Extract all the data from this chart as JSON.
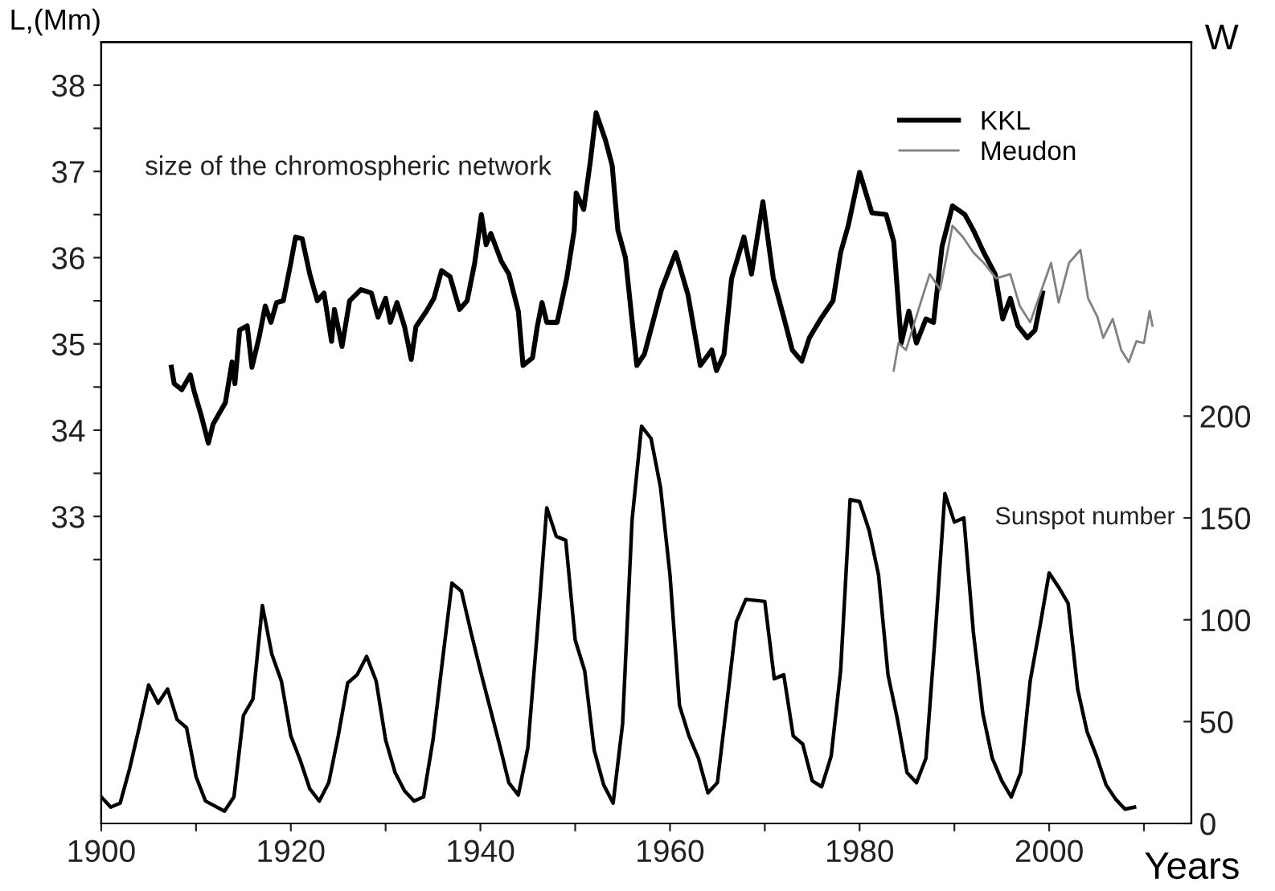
{
  "chart_data": {
    "type": "line",
    "ylabel": "L,(Mm)",
    "y2label": "W",
    "xlabel": "Years",
    "annotations": [
      "size of the chromospheric network"
    ],
    "xlim": [
      1900,
      2015
    ],
    "xticks": [
      1900,
      {
        "value": 1910,
        "label": null
      },
      1920,
      {
        "value": 1930,
        "label": null
      },
      1940,
      {
        "value": 1950,
        "label": null
      },
      1960,
      {
        "value": 1970,
        "label": null
      },
      1980,
      {
        "value": 1990,
        "label": null
      },
      2000,
      {
        "value": 2010,
        "label": null
      }
    ],
    "ylim": [
      29.44,
      38.5
    ],
    "yticks": [
      {
        "value": 32.5,
        "label": null
      },
      33,
      {
        "value": 33.5,
        "label": null
      },
      34,
      {
        "value": 34.5,
        "label": null
      },
      35,
      {
        "value": 35.5,
        "label": null
      },
      36,
      {
        "value": 36.5,
        "label": null
      },
      37,
      {
        "value": 37.5,
        "label": null
      },
      38
    ],
    "y2lim": [
      0,
      383.6
    ],
    "y2ticks": [
      0,
      50,
      100,
      150,
      200
    ],
    "legend": "top right",
    "grid": false,
    "series": [
      {
        "name": "KKL",
        "color": "#000000",
        "x": [
          1907.4,
          1907.7,
          1908.5,
          1909.4,
          1909.8,
          1910.5,
          1911.3,
          1911.8,
          1913.1,
          1913.8,
          1914.1,
          1914.6,
          1915.4,
          1915.9,
          1916.7,
          1917.3,
          1917.9,
          1918.5,
          1919.2,
          1920.0,
          1920.5,
          1921.2,
          1922.0,
          1922.8,
          1923.5,
          1924.3,
          1924.6,
          1925.4,
          1926.2,
          1927.4,
          1928.5,
          1929.2,
          1930.0,
          1930.5,
          1931.2,
          1932.0,
          1932.7,
          1933.2,
          1934.3,
          1935.1,
          1935.9,
          1936.8,
          1937.8,
          1938.6,
          1939.4,
          1940.1,
          1940.6,
          1941.1,
          1942.2,
          1943.0,
          1944.0,
          1944.5,
          1945.5,
          1946.0,
          1946.5,
          1947.0,
          1948.1,
          1949.1,
          1949.9,
          1950.1,
          1950.9,
          1951.6,
          1952.2,
          1953.2,
          1953.9,
          1954.5,
          1955.3,
          1956.5,
          1957.3,
          1959.1,
          1960.6,
          1961.9,
          1963.2,
          1964.4,
          1964.9,
          1965.7,
          1966.5,
          1967.8,
          1968.6,
          1969.8,
          1970.9,
          1972.0,
          1972.9,
          1973.9,
          1974.7,
          1975.9,
          1977.2,
          1978.0,
          1978.8,
          1980.0,
          1981.3,
          1982.8,
          1983.6,
          1984.4,
          1985.2,
          1986.0,
          1987.0,
          1987.8,
          1988.7,
          1989.8,
          1991.1,
          1992.0,
          1993.1,
          1994.3,
          1995.1,
          1995.9,
          1996.7,
          1997.7,
          1998.5,
          1999.3
        ],
        "values": [
          34.73,
          34.54,
          34.47,
          34.64,
          34.45,
          34.19,
          33.85,
          34.07,
          34.32,
          34.79,
          34.54,
          35.16,
          35.21,
          34.73,
          35.1,
          35.44,
          35.25,
          35.48,
          35.5,
          35.94,
          36.24,
          36.22,
          35.81,
          35.5,
          35.59,
          35.03,
          35.4,
          34.97,
          35.5,
          35.63,
          35.59,
          35.31,
          35.53,
          35.25,
          35.48,
          35.2,
          34.82,
          35.2,
          35.38,
          35.53,
          35.85,
          35.78,
          35.4,
          35.5,
          35.94,
          36.5,
          36.15,
          36.28,
          35.96,
          35.81,
          35.38,
          34.75,
          34.84,
          35.2,
          35.48,
          35.25,
          35.25,
          35.76,
          36.32,
          36.75,
          36.56,
          37.12,
          37.68,
          37.36,
          37.07,
          36.32,
          36.0,
          34.75,
          34.88,
          35.63,
          36.06,
          35.57,
          34.75,
          34.93,
          34.69,
          34.88,
          35.76,
          36.24,
          35.81,
          36.65,
          35.76,
          35.31,
          34.93,
          34.8,
          35.07,
          35.29,
          35.5,
          36.06,
          36.37,
          36.99,
          36.52,
          36.5,
          36.19,
          35.01,
          35.38,
          35.01,
          35.29,
          35.25,
          36.13,
          36.6,
          36.5,
          36.32,
          36.06,
          35.81,
          35.29,
          35.53,
          35.21,
          35.07,
          35.16,
          35.59
        ]
      },
      {
        "name": "Meudon",
        "color": "#808080",
        "x": [
          1983.6,
          1984.1,
          1984.9,
          1986.5,
          1987.4,
          1988.5,
          1989.8,
          1990.9,
          1992.0,
          1993.1,
          1994.4,
          1995.9,
          1996.9,
          1998.0,
          1998.8,
          2000.2,
          2001.0,
          2002.1,
          2003.3,
          2004.1,
          2005.1,
          2005.7,
          2006.7,
          2007.6,
          2008.4,
          2009.2,
          2010.0,
          2010.6,
          2010.9
        ],
        "values": [
          34.69,
          35.01,
          34.93,
          35.5,
          35.81,
          35.63,
          36.37,
          36.24,
          36.06,
          35.94,
          35.76,
          35.81,
          35.44,
          35.25,
          35.5,
          35.94,
          35.48,
          35.94,
          36.09,
          35.53,
          35.31,
          35.07,
          35.29,
          34.93,
          34.79,
          35.03,
          35.01,
          35.38,
          35.21
        ]
      },
      {
        "name": "Sunspot number",
        "color": "#000000",
        "axis": "y2",
        "x": [
          1900,
          1901,
          1902,
          1903,
          1904,
          1905,
          1906,
          1907,
          1908,
          1909,
          1910,
          1911,
          1913,
          1914,
          1915,
          1916,
          1917,
          1918,
          1919,
          1920,
          1921,
          1922,
          1923,
          1924,
          1925,
          1926,
          1927,
          1928,
          1929,
          1930,
          1931,
          1932,
          1933,
          1934,
          1935,
          1936,
          1937,
          1938,
          1939,
          1940,
          1941,
          1942,
          1943,
          1944,
          1945,
          1946,
          1947,
          1948,
          1949,
          1950,
          1951,
          1952,
          1953,
          1954,
          1955,
          1956,
          1957,
          1958,
          1959,
          1960,
          1961,
          1962,
          1963,
          1964,
          1965,
          1966,
          1967,
          1968,
          1970,
          1971,
          1972,
          1973,
          1974,
          1975,
          1976,
          1977,
          1978,
          1979,
          1980,
          1981,
          1982,
          1983,
          1984,
          1985,
          1986,
          1987,
          1988,
          1989,
          1990,
          1991,
          1992,
          1993,
          1994,
          1995,
          1996,
          1997,
          1998,
          1999,
          2000,
          2001,
          2002,
          2003,
          2004,
          2005,
          2006,
          2007,
          2008,
          2009
        ],
        "values": [
          13,
          8,
          10,
          27,
          47,
          68,
          59,
          66,
          51,
          47,
          23,
          11,
          6,
          13,
          53,
          61,
          107,
          83,
          70,
          43,
          31,
          17,
          11,
          20,
          43,
          69,
          73,
          82,
          70,
          41,
          25,
          16,
          11,
          13,
          41,
          80,
          118,
          114,
          94,
          75,
          57,
          39,
          20,
          14,
          37,
          94,
          155,
          141,
          139,
          90,
          75,
          36,
          19,
          10,
          49,
          149,
          195,
          189,
          165,
          122,
          58,
          43,
          32,
          15,
          20,
          59,
          99,
          110,
          109,
          71,
          73,
          43,
          39,
          21,
          18,
          33,
          75,
          159,
          158,
          144,
          122,
          73,
          51,
          25,
          20,
          32,
          94,
          162,
          148,
          150,
          94,
          54,
          32,
          21,
          13,
          25,
          70,
          96,
          123,
          116,
          108,
          66,
          45,
          33,
          19,
          12,
          7,
          8
        ]
      }
    ]
  }
}
